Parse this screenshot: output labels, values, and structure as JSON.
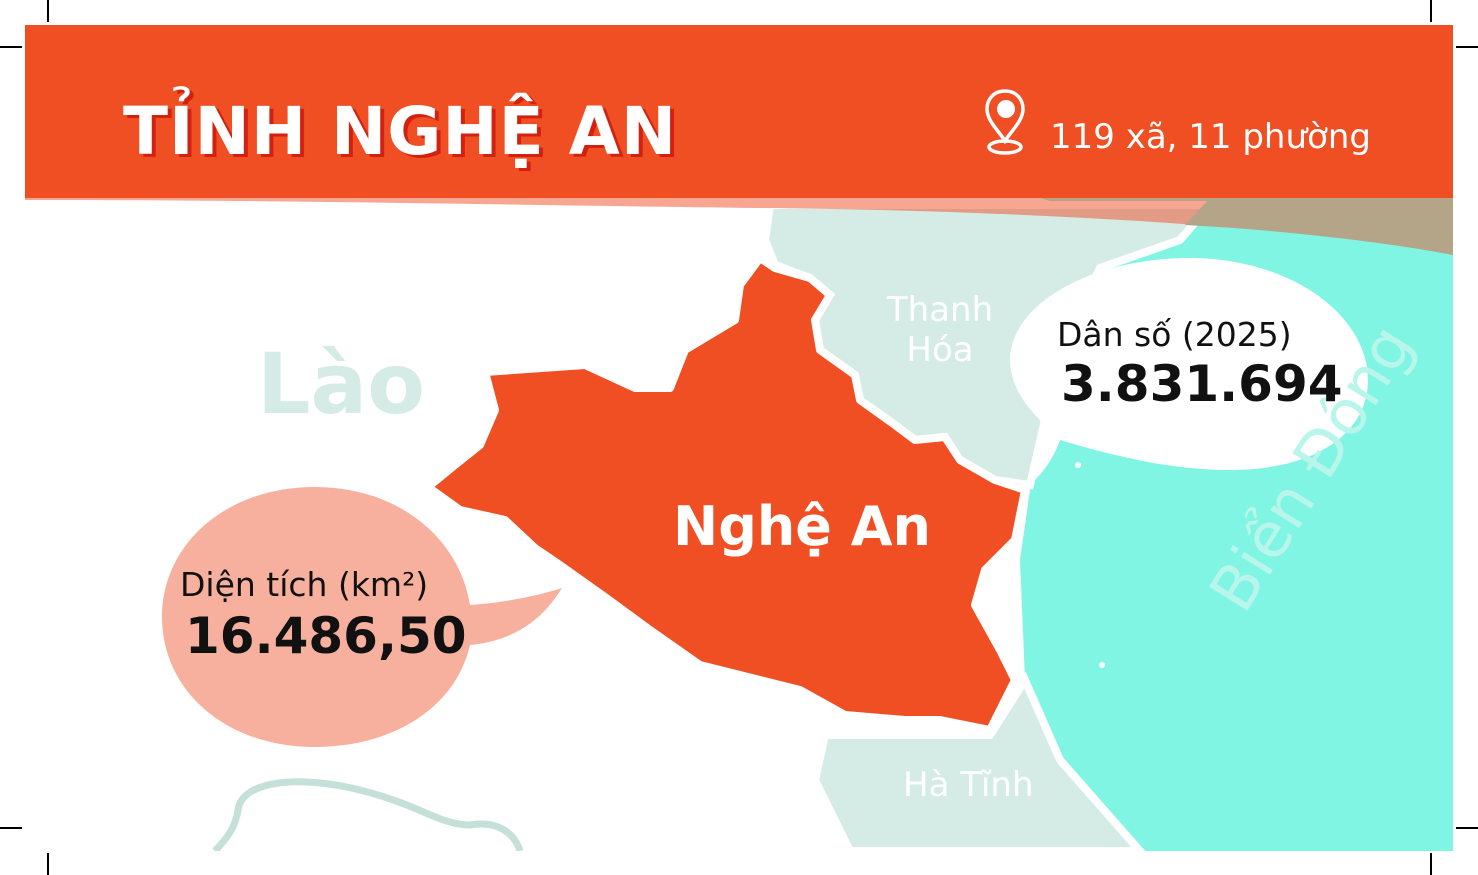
{
  "header": {
    "title": "TỈNH NGHỆ AN",
    "location_icon": "map-pin-icon",
    "wards_text": "119 xã, 11 phường"
  },
  "map": {
    "province_label": "Nghệ An",
    "neighbors": {
      "laos": "Lào",
      "thanh_hoa": "Thanh Hóa",
      "ha_tinh": "Hà Tĩnh",
      "sea": "Biển Đông"
    }
  },
  "stats": {
    "population_label": "Dân số (2025)",
    "population_value": "3.831.694",
    "area_label": "Diện tích (km²)",
    "area_value": "16.486,50"
  },
  "colors": {
    "header": "#F04E23",
    "province": "#F04E23",
    "neighbor": "#D5EBE6",
    "sea": "#80F5E4",
    "area_bubble": "#F7B09E",
    "population_bubble": "#FFFFFF"
  }
}
